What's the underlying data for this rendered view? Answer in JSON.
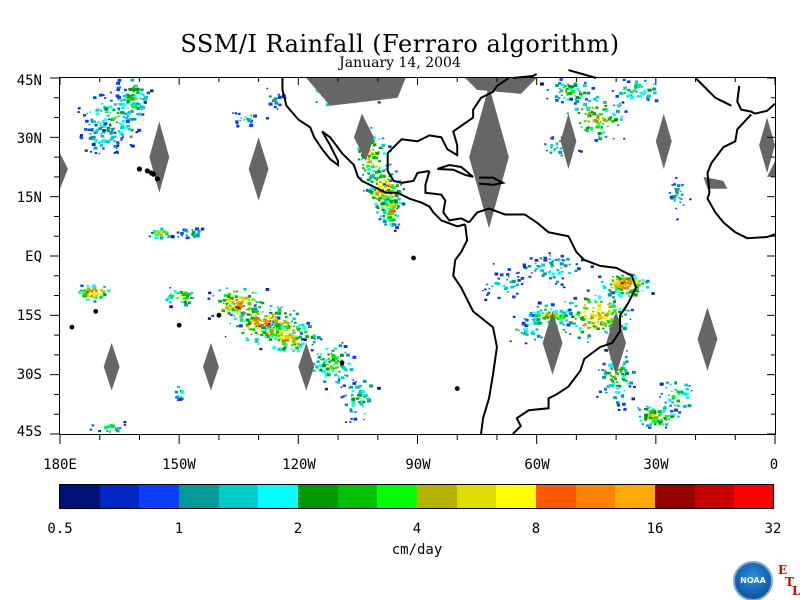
{
  "title": "SSM/I Rainfall (Ferraro algorithm)",
  "date": "January 14, 2004",
  "lat_labels": [
    "45N",
    "30N",
    "15N",
    "EQ",
    "15S",
    "30S",
    "45S"
  ],
  "lon_labels": [
    "180E",
    "150W",
    "120W",
    "90W",
    "60W",
    "30W",
    "0"
  ],
  "colorbar": {
    "ticks": [
      "0.5",
      "1",
      "2",
      "4",
      "8",
      "16",
      "32"
    ],
    "units": "cm/day",
    "colors": [
      "#00117a",
      "#0026c2",
      "#0a3dff",
      "#009a9a",
      "#00cccc",
      "#00ffff",
      "#009900",
      "#00c000",
      "#00ff00",
      "#b4b400",
      "#dddd00",
      "#ffff00",
      "#ff5a00",
      "#ff8200",
      "#ffaa00",
      "#960000",
      "#c80000",
      "#ff0000"
    ]
  },
  "logo": {
    "name": "NOAA",
    "letters": [
      "E",
      "T",
      "L"
    ]
  },
  "map_colors": {
    "missing": "#666666",
    "coast": "#000000"
  }
}
